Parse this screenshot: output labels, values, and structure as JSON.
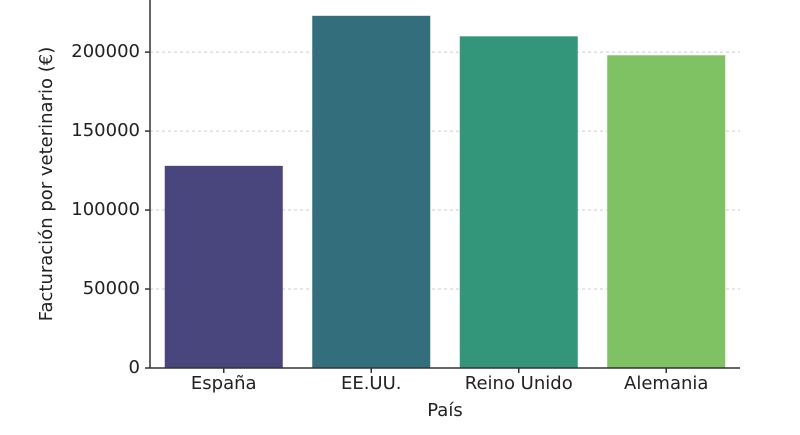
{
  "chart_data": {
    "type": "bar",
    "xlabel": "País",
    "ylabel": "Facturación por veterinario (€)",
    "categories": [
      "España",
      "EE.UU.",
      "Reino Unido",
      "Alemania"
    ],
    "values": [
      128000,
      223000,
      210000,
      198000
    ],
    "colors": [
      "#48467c",
      "#336e7d",
      "#33957a",
      "#7fc263"
    ],
    "ylim": [
      0,
      233000
    ],
    "yticks": [
      0,
      50000,
      100000,
      150000,
      200000
    ],
    "grid": true
  }
}
